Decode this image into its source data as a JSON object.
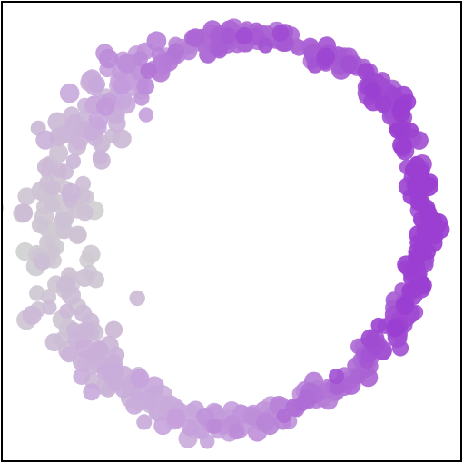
{
  "chart_data": {
    "type": "scatter",
    "title": "",
    "xlabel": "",
    "ylabel": "",
    "xlim": [
      -1.15,
      1.15
    ],
    "ylim": [
      -1.15,
      1.15
    ],
    "grid": false,
    "legend": "none",
    "axes_visible": false,
    "colormap": {
      "low": "#d0d0d0",
      "mid": "#c8a6dc",
      "high": "#9a3fd0"
    },
    "point_count": 620,
    "shape": "noisy ring of points; color value increases from left (grey) to right (purple)",
    "series": [
      {
        "values": [
          {
            "x": 0.98,
            "y": 0.0,
            "c": 1.0
          },
          {
            "x": 0.93,
            "y": 0.35,
            "c": 0.97
          },
          {
            "x": 0.8,
            "y": 0.66,
            "c": 0.92
          },
          {
            "x": 0.55,
            "y": 0.86,
            "c": 0.86
          },
          {
            "x": 0.15,
            "y": 0.99,
            "c": 0.8
          },
          {
            "x": -0.15,
            "y": 0.96,
            "c": 0.74
          },
          {
            "x": -0.45,
            "y": 0.82,
            "c": 0.58
          },
          {
            "x": -0.7,
            "y": 0.6,
            "c": 0.4
          },
          {
            "x": -0.85,
            "y": 0.3,
            "c": 0.2
          },
          {
            "x": -0.9,
            "y": 0.0,
            "c": 0.05
          },
          {
            "x": -0.85,
            "y": -0.3,
            "c": 0.15
          },
          {
            "x": -0.7,
            "y": -0.62,
            "c": 0.3
          },
          {
            "x": -0.45,
            "y": -0.85,
            "c": 0.42
          },
          {
            "x": -0.1,
            "y": -0.99,
            "c": 0.48
          },
          {
            "x": 0.25,
            "y": -0.92,
            "c": 0.62
          },
          {
            "x": 0.62,
            "y": -0.72,
            "c": 0.8
          },
          {
            "x": 0.88,
            "y": -0.4,
            "c": 0.92
          }
        ]
      }
    ]
  }
}
